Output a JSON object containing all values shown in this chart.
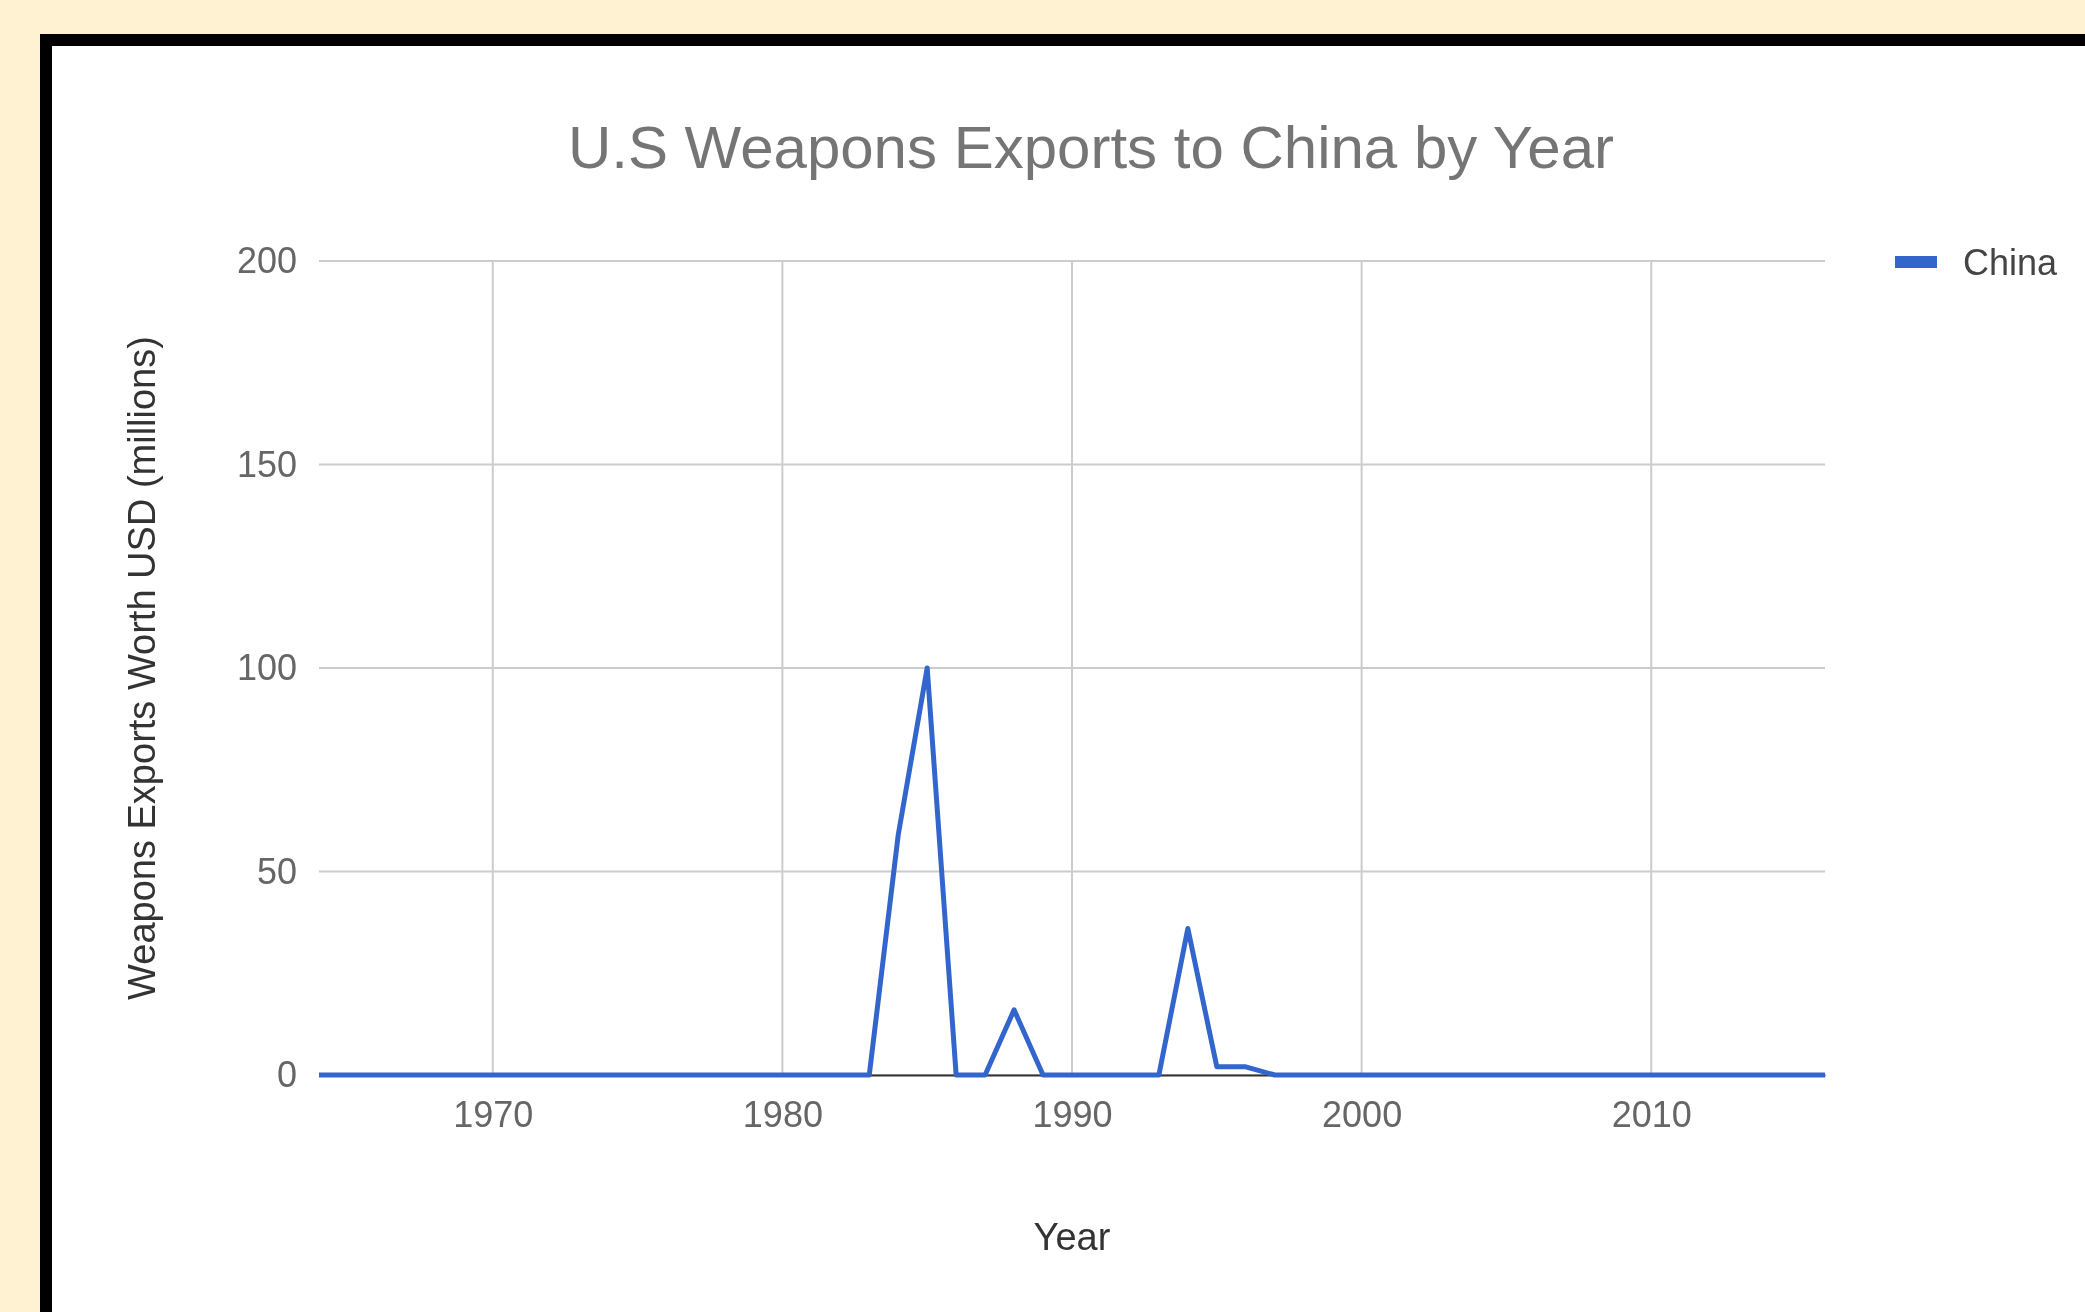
{
  "chart_data": {
    "type": "line",
    "title": "U.S Weapons Exports to China by Year",
    "xlabel": "Year",
    "ylabel": "Weapons Exports Worth USD (millions)",
    "x": [
      1964,
      1983,
      1984,
      1985,
      1986,
      1987,
      1988,
      1989,
      1993,
      1994,
      1995,
      1996,
      1997,
      2016
    ],
    "series": [
      {
        "name": "China",
        "color": "#3366cc",
        "values": [
          0,
          0,
          59,
          100,
          0,
          0,
          16,
          0,
          0,
          36,
          2,
          2,
          0,
          0
        ]
      }
    ],
    "xlim": [
      1964,
      2016
    ],
    "xticks": [
      1970,
      1980,
      1990,
      2000,
      2010
    ],
    "ylim": [
      0,
      200
    ],
    "yticks": [
      0,
      50,
      100,
      150,
      200
    ],
    "grid": true,
    "legend": "right",
    "marker": "none",
    "line_style": "solid"
  }
}
